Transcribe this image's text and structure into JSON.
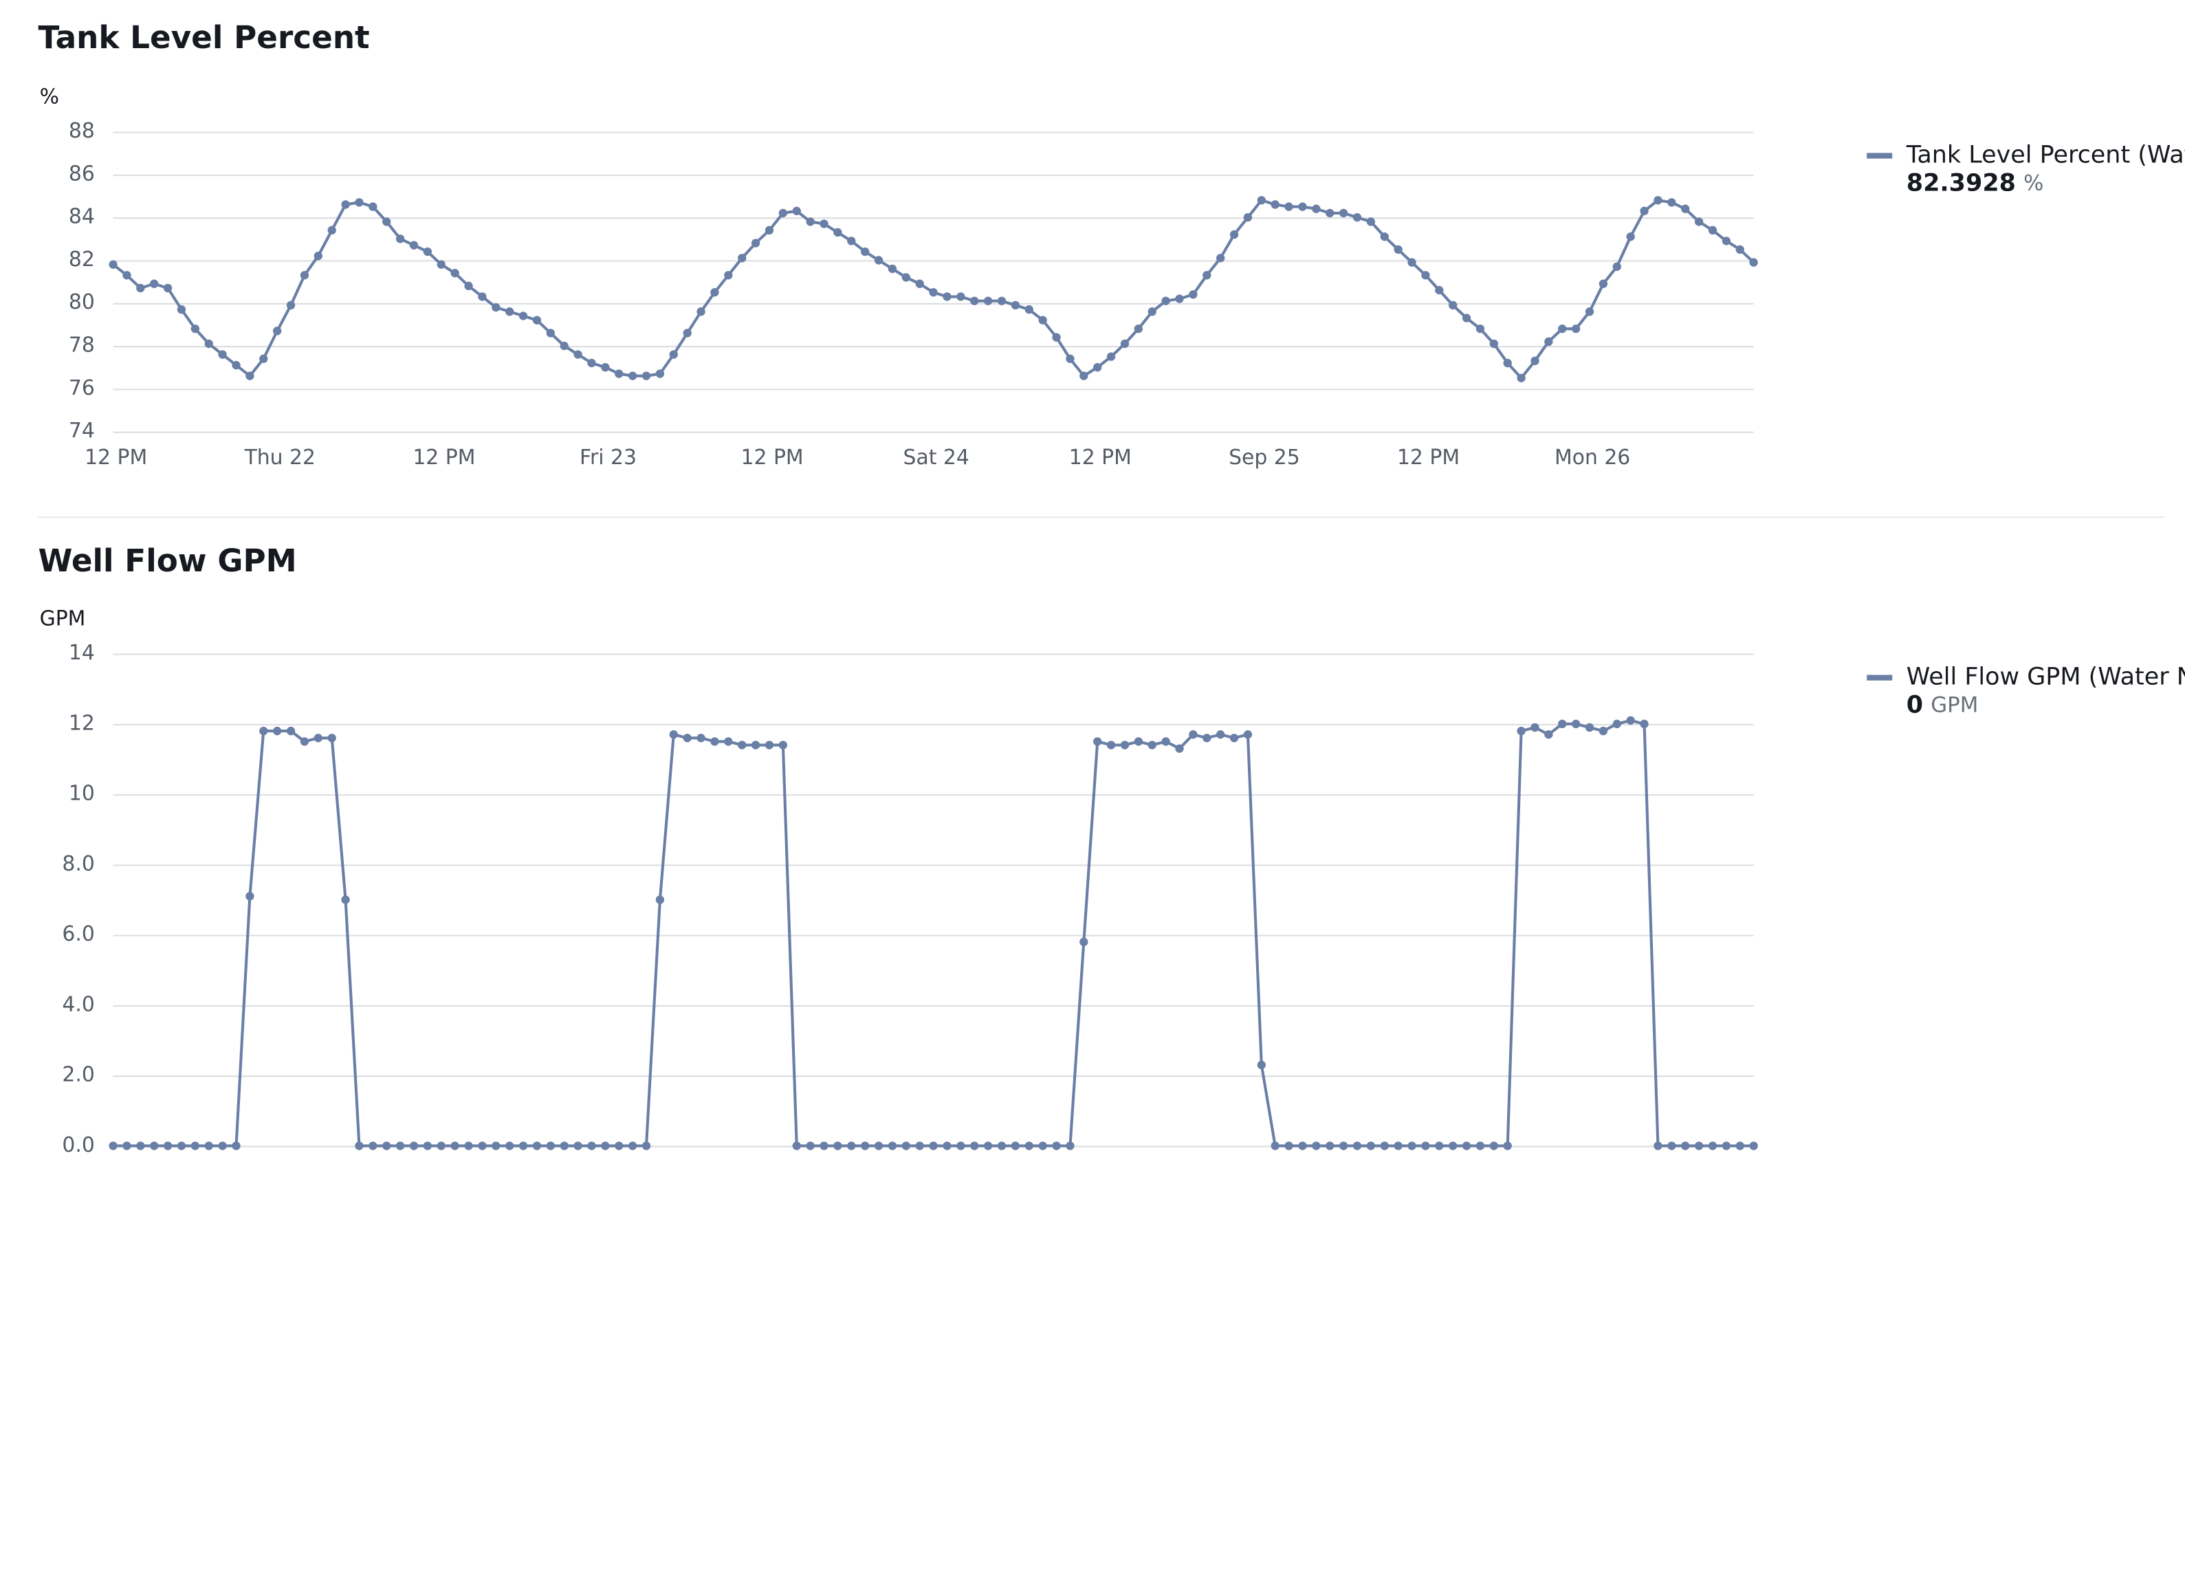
{
  "chart_data": [
    {
      "type": "line",
      "title": "Tank Level Percent",
      "unit": "%",
      "categories": [
        "12 PM",
        null,
        null,
        null,
        null,
        null,
        null,
        null,
        null,
        null,
        null,
        null,
        "Thu 22",
        null,
        null,
        null,
        null,
        null,
        null,
        null,
        null,
        null,
        null,
        null,
        "12 PM",
        null,
        null,
        null,
        null,
        null,
        null,
        null,
        null,
        null,
        null,
        null,
        "Fri 23",
        null,
        null,
        null,
        null,
        null,
        null,
        null,
        null,
        null,
        null,
        null,
        "12 PM",
        null,
        null,
        null,
        null,
        null,
        null,
        null,
        null,
        null,
        null,
        null,
        "Sat 24",
        null,
        null,
        null,
        null,
        null,
        null,
        null,
        null,
        null,
        null,
        null,
        "12 PM",
        null,
        null,
        null,
        null,
        null,
        null,
        null,
        null,
        null,
        null,
        null,
        "Sep 25",
        null,
        null,
        null,
        null,
        null,
        null,
        null,
        null,
        null,
        null,
        null,
        "12 PM",
        null,
        null,
        null,
        null,
        null,
        null,
        null,
        null,
        null,
        null,
        null,
        "Mon 26",
        null,
        null,
        null,
        null,
        null,
        null,
        null,
        null,
        null,
        null,
        null,
        null
      ],
      "series": [
        {
          "name": "Tank Level Percent (Wat",
          "color": "#6a7fa6",
          "latest": 82.3928,
          "values": [
            81.8,
            81.3,
            80.7,
            80.9,
            80.7,
            79.7,
            78.8,
            78.1,
            77.6,
            77.1,
            76.6,
            77.4,
            78.7,
            79.9,
            81.3,
            82.2,
            83.4,
            84.6,
            84.7,
            84.5,
            83.8,
            83.0,
            82.7,
            82.4,
            81.8,
            81.4,
            80.8,
            80.3,
            79.8,
            79.6,
            79.4,
            79.2,
            78.6,
            78.0,
            77.6,
            77.2,
            77.0,
            76.7,
            76.6,
            76.6,
            76.7,
            77.6,
            78.6,
            79.6,
            80.5,
            81.3,
            82.1,
            82.8,
            83.4,
            84.2,
            84.3,
            83.8,
            83.7,
            83.3,
            82.9,
            82.4,
            82.0,
            81.6,
            81.2,
            80.9,
            80.5,
            80.3,
            80.3,
            80.1,
            80.1,
            80.1,
            79.9,
            79.7,
            79.2,
            78.4,
            77.4,
            76.6,
            77.0,
            77.5,
            78.1,
            78.8,
            79.6,
            80.1,
            80.2,
            80.4,
            81.3,
            82.1,
            83.2,
            84.0,
            84.8,
            84.6,
            84.5,
            84.5,
            84.4,
            84.2,
            84.2,
            84.0,
            83.8,
            83.1,
            82.5,
            81.9,
            81.3,
            80.6,
            79.9,
            79.3,
            78.8,
            78.1,
            77.2,
            76.5,
            77.3,
            78.2,
            78.8,
            78.8,
            79.6,
            80.9,
            81.7,
            83.1,
            84.3,
            84.8,
            84.7,
            84.4,
            83.8,
            83.4,
            82.9,
            82.5,
            81.9
          ]
        }
      ],
      "ylim": [
        74,
        88
      ],
      "yticks": [
        74,
        76,
        78,
        80,
        82,
        84,
        86,
        88
      ],
      "grid": true
    },
    {
      "type": "line",
      "title": "Well Flow GPM",
      "unit": "GPM",
      "series": [
        {
          "name": "Well Flow GPM (Water N",
          "color": "#6a7fa6",
          "latest": 0,
          "values": [
            0,
            0,
            0,
            0,
            0,
            0,
            0,
            0,
            0,
            0,
            7.1,
            11.8,
            11.8,
            11.8,
            11.5,
            11.6,
            11.6,
            7.0,
            0,
            0,
            0,
            0,
            0,
            0,
            0,
            0,
            0,
            0,
            0,
            0,
            0,
            0,
            0,
            0,
            0,
            0,
            0,
            0,
            0,
            0,
            7.0,
            11.7,
            11.6,
            11.6,
            11.5,
            11.5,
            11.4,
            11.4,
            11.4,
            11.4,
            0,
            0,
            0,
            0,
            0,
            0,
            0,
            0,
            0,
            0,
            0,
            0,
            0,
            0,
            0,
            0,
            0,
            0,
            0,
            0,
            0,
            5.8,
            11.5,
            11.4,
            11.4,
            11.5,
            11.4,
            11.5,
            11.3,
            11.7,
            11.6,
            11.7,
            11.6,
            11.7,
            2.3,
            0,
            0,
            0,
            0,
            0,
            0,
            0,
            0,
            0,
            0,
            0,
            0,
            0,
            0,
            0,
            0,
            0,
            0,
            11.8,
            11.9,
            11.7,
            12.0,
            12.0,
            11.9,
            11.8,
            12.0,
            12.1,
            12.0,
            0,
            0,
            0,
            0,
            0,
            0,
            0,
            0
          ]
        }
      ],
      "ylim": [
        0,
        14
      ],
      "yticks": [
        {
          "value": 0,
          "label": "0.0"
        },
        {
          "value": 2,
          "label": "2.0"
        },
        {
          "value": 4,
          "label": "4.0"
        },
        {
          "value": 6,
          "label": "6.0"
        },
        {
          "value": 8,
          "label": "8.0"
        },
        10,
        12,
        14
      ],
      "grid": true
    }
  ]
}
